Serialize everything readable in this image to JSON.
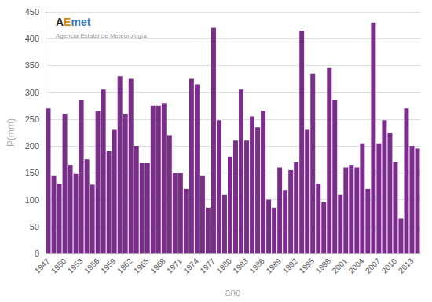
{
  "chart_data": {
    "type": "bar",
    "categories": [
      "1947",
      null,
      null,
      "1950",
      null,
      null,
      "1953",
      null,
      null,
      "1956",
      null,
      null,
      "1959",
      null,
      null,
      "1962",
      null,
      null,
      "1965",
      null,
      null,
      "1968",
      null,
      null,
      "1971",
      null,
      null,
      "1974",
      null,
      null,
      "1977",
      null,
      null,
      "1980",
      null,
      null,
      "1983",
      null,
      null,
      "1986",
      null,
      null,
      "1989",
      null,
      null,
      "1992",
      null,
      null,
      "1995",
      null,
      null,
      "1998",
      null,
      null,
      "2001",
      null,
      null,
      "2004",
      null,
      null,
      "2007",
      null,
      null,
      "2010",
      null,
      null,
      "2013",
      null
    ],
    "values": [
      270,
      145,
      130,
      260,
      165,
      148,
      285,
      175,
      128,
      265,
      305,
      190,
      230,
      330,
      260,
      325,
      200,
      168,
      168,
      275,
      275,
      280,
      220,
      150,
      150,
      120,
      325,
      315,
      145,
      85,
      420,
      248,
      110,
      180,
      210,
      305,
      210,
      255,
      235,
      265,
      100,
      85,
      160,
      118,
      155,
      170,
      415,
      230,
      335,
      130,
      95,
      345,
      285,
      110,
      160,
      165,
      160,
      205,
      120,
      430,
      205,
      248,
      225,
      170,
      65,
      270,
      200,
      195
    ],
    "color": "#7B2D8B",
    "xlabel": "año",
    "ylabel": "P(mm)",
    "ylim": [
      0,
      450
    ],
    "yticks": [
      0,
      50,
      100,
      150,
      200,
      250,
      300,
      350,
      400,
      450
    ],
    "grid": true,
    "annotations": [
      {
        "text": "A",
        "color": "#2a2a2a"
      },
      {
        "text": "E",
        "color": "#d4880a"
      },
      {
        "text": "met",
        "color": "#3a7ab8"
      },
      {
        "text": "Agencia Estatal de Meteorología",
        "color": "#999999"
      }
    ]
  }
}
